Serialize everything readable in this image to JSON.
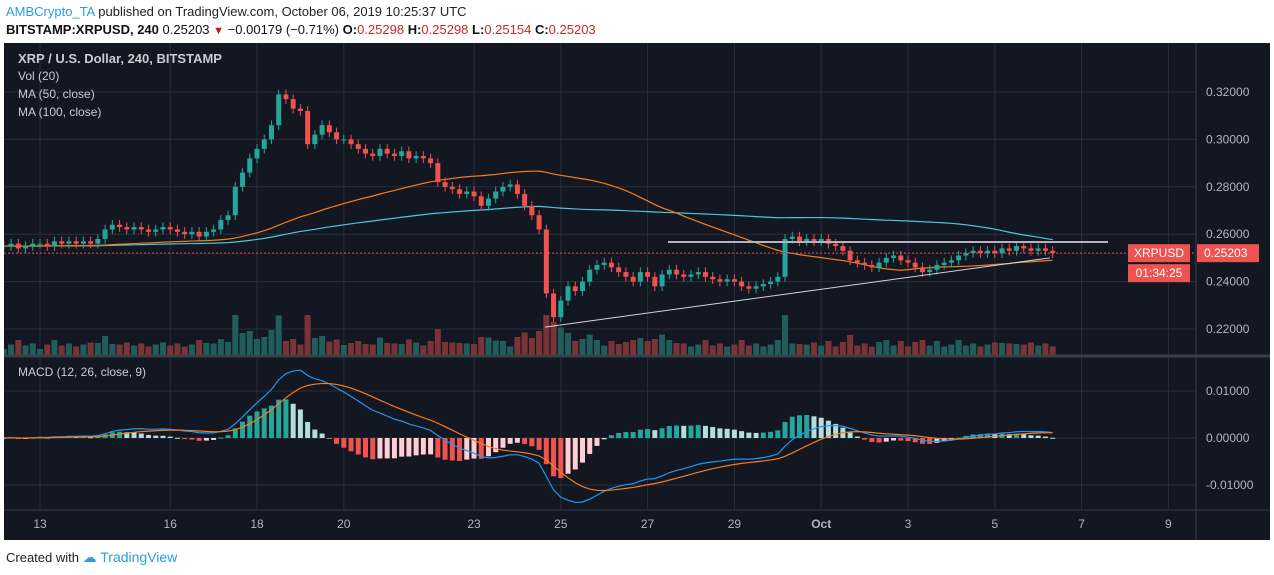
{
  "header": {
    "user": "AMBCrypto_TA",
    "published": "published on TradingView.com, October 06, 2019 10:25:37 UTC",
    "symbol": "BITSTAMP:XRPUSD, 240",
    "last": "0.25203",
    "change": "−0.00179 (−0.71%)",
    "o_label": "O:",
    "o": "0.25298",
    "h_label": "H:",
    "h": "0.25298",
    "l_label": "L:",
    "l": "0.25154",
    "c_label": "C:",
    "c": "0.25203"
  },
  "legend": {
    "title": "XRP / U.S. Dollar, 240, BITSTAMP",
    "vol": "Vol (20)",
    "ma50": "MA (50, close)",
    "ma100": "MA (100, close)",
    "macd": "MACD (12, 26, close, 9)"
  },
  "price_tag": {
    "symbol": "XRPUSD",
    "price": "0.25203",
    "countdown": "01:34:25"
  },
  "footer": {
    "created": "Created with",
    "brand": "TradingView"
  },
  "colors": {
    "up": "#26a69a",
    "down": "#ef5350",
    "ma50": "#f57c1f",
    "ma100": "#4dc6d6",
    "macd": "#2196f3",
    "signal": "#f57c1f",
    "background": "#131722"
  },
  "chart_data": {
    "type": "candlestick",
    "interval": "240",
    "start": "2019-09-12 04:00",
    "x_ticks": [
      "13",
      "16",
      "18",
      "20",
      "23",
      "25",
      "27",
      "29",
      "Oct",
      "3",
      "5",
      "7",
      "9"
    ],
    "price_ticks": [
      "0.32000",
      "0.30000",
      "0.28000",
      "0.26000",
      "0.24000",
      "0.22000"
    ],
    "ylim": [
      0.215,
      0.33
    ],
    "macd_ticks": [
      "0.01000",
      "0.00000",
      "-0.01000"
    ],
    "closes": [
      0.255,
      0.256,
      0.254,
      0.255,
      0.256,
      0.256,
      0.255,
      0.257,
      0.256,
      0.257,
      0.256,
      0.257,
      0.256,
      0.258,
      0.262,
      0.264,
      0.263,
      0.262,
      0.263,
      0.262,
      0.261,
      0.262,
      0.263,
      0.262,
      0.261,
      0.26,
      0.261,
      0.259,
      0.261,
      0.262,
      0.266,
      0.268,
      0.28,
      0.286,
      0.292,
      0.296,
      0.3,
      0.306,
      0.319,
      0.317,
      0.313,
      0.312,
      0.298,
      0.302,
      0.306,
      0.303,
      0.3,
      0.3,
      0.298,
      0.296,
      0.294,
      0.293,
      0.296,
      0.294,
      0.293,
      0.295,
      0.292,
      0.293,
      0.292,
      0.29,
      0.282,
      0.28,
      0.279,
      0.277,
      0.278,
      0.276,
      0.272,
      0.275,
      0.278,
      0.28,
      0.281,
      0.277,
      0.272,
      0.268,
      0.262,
      0.235,
      0.225,
      0.232,
      0.238,
      0.236,
      0.24,
      0.245,
      0.247,
      0.248,
      0.246,
      0.244,
      0.242,
      0.24,
      0.244,
      0.242,
      0.238,
      0.243,
      0.245,
      0.243,
      0.242,
      0.243,
      0.244,
      0.242,
      0.241,
      0.24,
      0.241,
      0.24,
      0.238,
      0.237,
      0.238,
      0.239,
      0.24,
      0.242,
      0.258,
      0.259,
      0.257,
      0.258,
      0.257,
      0.258,
      0.256,
      0.255,
      0.253,
      0.249,
      0.248,
      0.247,
      0.246,
      0.248,
      0.25,
      0.251,
      0.249,
      0.248,
      0.246,
      0.244,
      0.245,
      0.247,
      0.248,
      0.249,
      0.251,
      0.252,
      0.253,
      0.252,
      0.253,
      0.252,
      0.254,
      0.253,
      0.255,
      0.254,
      0.253,
      0.254,
      0.253,
      0.252
    ],
    "drawings": {
      "resistance": 0.2567,
      "support_start": 0.2208,
      "support_end": 0.25
    }
  }
}
